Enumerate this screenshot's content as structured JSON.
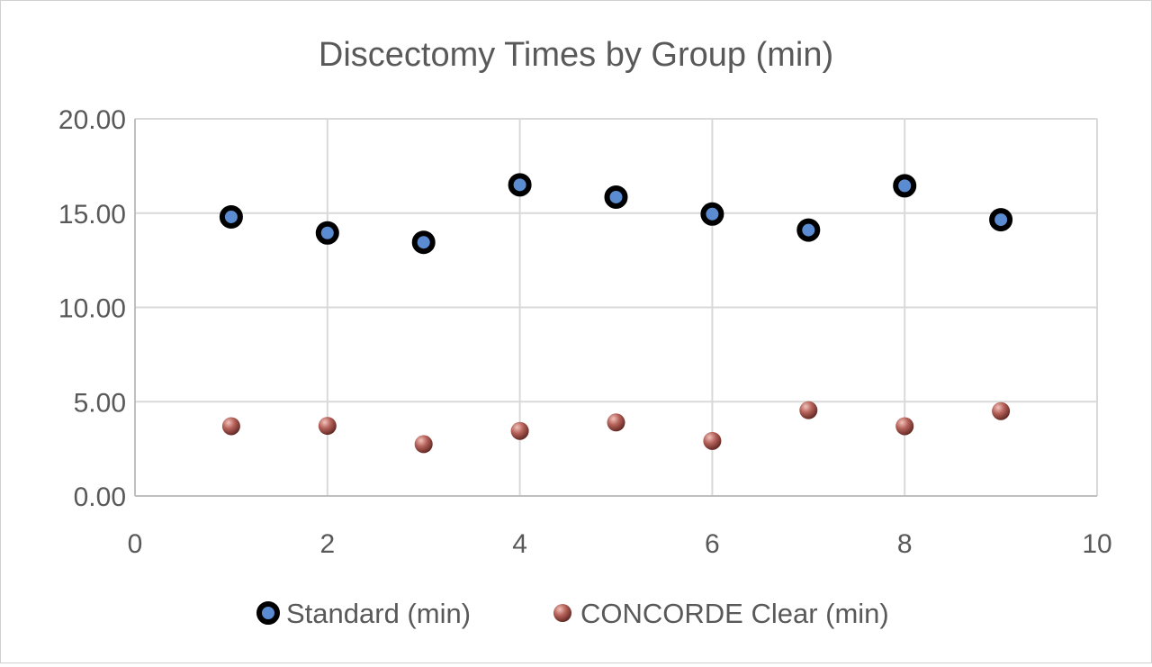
{
  "chart_data": {
    "type": "scatter",
    "title": "Discectomy Times by Group (min)",
    "xlabel": "",
    "ylabel": "",
    "xlim": [
      0,
      10
    ],
    "ylim": [
      0,
      20
    ],
    "x_ticks": [
      0,
      2,
      4,
      6,
      8,
      10
    ],
    "x_tick_labels": [
      "0",
      "2",
      "4",
      "6",
      "8",
      "10"
    ],
    "y_ticks": [
      0,
      5,
      10,
      15,
      20
    ],
    "y_tick_labels": [
      "0.00",
      "5.00",
      "10.00",
      "15.00",
      "20.00"
    ],
    "grid": true,
    "legend_position": "bottom",
    "series": [
      {
        "name": "Standard (min)",
        "color": "#000000",
        "center_color": "#5b8bd0",
        "points": [
          {
            "x": 1,
            "y": 14.8
          },
          {
            "x": 2,
            "y": 13.95
          },
          {
            "x": 3,
            "y": 13.45
          },
          {
            "x": 4,
            "y": 16.5
          },
          {
            "x": 5,
            "y": 15.85
          },
          {
            "x": 6,
            "y": 14.95
          },
          {
            "x": 7,
            "y": 14.1
          },
          {
            "x": 8,
            "y": 16.45
          },
          {
            "x": 9,
            "y": 14.65
          }
        ]
      },
      {
        "name": "CONCORDE Clear (min)",
        "color": "#b5625a",
        "points": [
          {
            "x": 1,
            "y": 3.7
          },
          {
            "x": 2,
            "y": 3.72
          },
          {
            "x": 3,
            "y": 2.75
          },
          {
            "x": 4,
            "y": 3.45
          },
          {
            "x": 5,
            "y": 3.9
          },
          {
            "x": 6,
            "y": 2.92
          },
          {
            "x": 7,
            "y": 4.55
          },
          {
            "x": 8,
            "y": 3.7
          },
          {
            "x": 9,
            "y": 4.5
          }
        ]
      }
    ]
  }
}
